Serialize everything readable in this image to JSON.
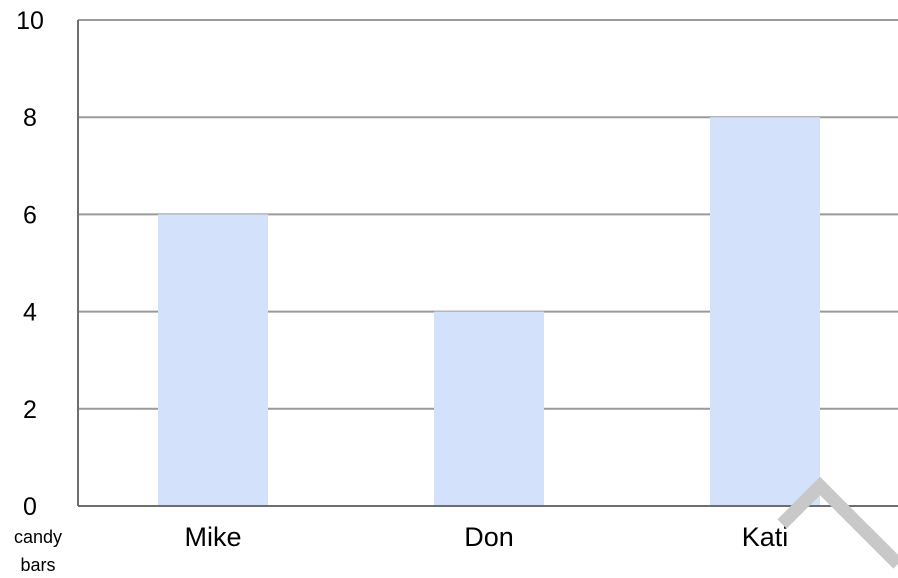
{
  "chart_data": {
    "type": "bar",
    "categories": [
      "Mike",
      "Don",
      "Kati"
    ],
    "values": [
      6,
      4,
      8
    ],
    "title": "",
    "xlabel": "",
    "ylabel": "",
    "ylim": [
      0,
      10
    ],
    "yticks": [
      0,
      2,
      4,
      6,
      8,
      10
    ],
    "y_unit_label": [
      "candy",
      "bars"
    ],
    "grid": true,
    "legend": "none",
    "colors": {
      "bar": "#d4e1fa",
      "grid": "#9a9a9a",
      "axis": "#6e6e6e",
      "corner_mark": "#c8c8c8"
    }
  }
}
